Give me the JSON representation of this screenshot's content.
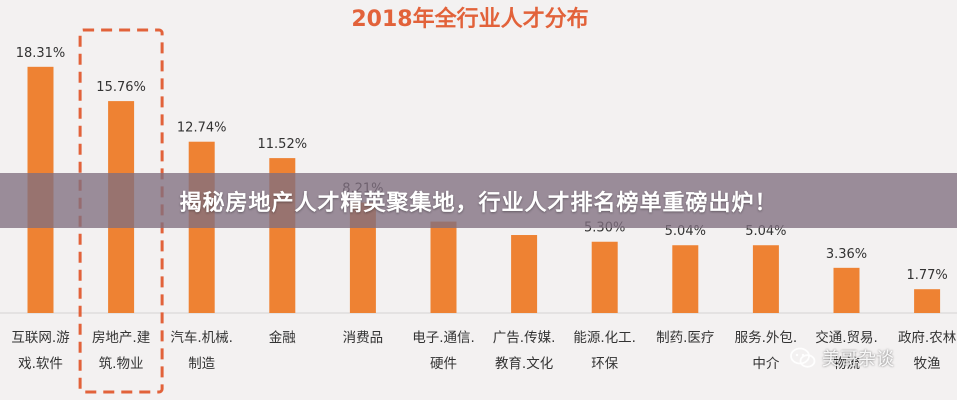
{
  "banner": {
    "title": "揭秘房地产人才精英聚集地，行业人才排名榜单重磅出炉！"
  },
  "watermark": {
    "text": "美哥杂谈",
    "icon": "wechat-icon"
  },
  "colors": {
    "bar": "#ee8233",
    "title": "#e2623a",
    "highlight": "#e2623a",
    "label": "#333333"
  },
  "chart_data": {
    "type": "bar",
    "title": "2018年全行业人才分布",
    "xlabel": "",
    "ylabel": "",
    "ylim": [
      0,
      20
    ],
    "grid": false,
    "highlighted_category_index": 1,
    "categories": [
      [
        "互联网.游",
        "戏.软件"
      ],
      [
        "房地产.建",
        "筑.物业"
      ],
      [
        "汽车.机械.",
        "制造"
      ],
      [
        "金融"
      ],
      [
        "消费品"
      ],
      [
        "电子.通信.",
        "硬件"
      ],
      [
        "广告.传媒.",
        "教育.文化"
      ],
      [
        "能源.化工.",
        "环保"
      ],
      [
        "制药.医疗"
      ],
      [
        "服务.外包.",
        "中介"
      ],
      [
        "交通.贸易.",
        "物流"
      ],
      [
        "政府.农林",
        "牧渔"
      ]
    ],
    "values": [
      18.31,
      15.76,
      12.74,
      11.52,
      8.21,
      6.8,
      5.8,
      5.3,
      5.04,
      5.04,
      3.36,
      1.77
    ],
    "labels": [
      "18.31%",
      "15.76%",
      "12.74%",
      "11.52%",
      "8.21%",
      "",
      "",
      "5.30%",
      "5.04%",
      "5.04%",
      "3.36%",
      "1.77%"
    ]
  }
}
